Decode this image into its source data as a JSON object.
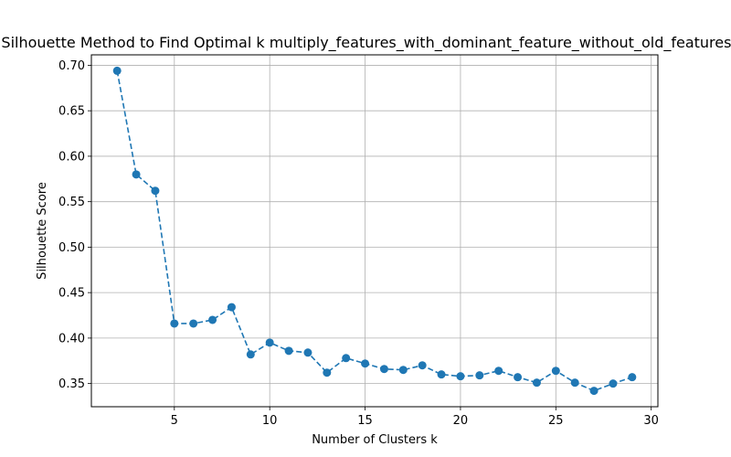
{
  "chart_data": {
    "type": "line",
    "title": "Silhouette Method to Find Optimal k multiply_features_with_dominant_feature_without_old_features_n",
    "xlabel": "Number of Clusters k",
    "ylabel": "Silhouette Score",
    "xlim": [
      0.65,
      30.35
    ],
    "ylim": [
      0.3245,
      0.7115
    ],
    "xticks": [
      5,
      10,
      15,
      20,
      25,
      30
    ],
    "yticks": [
      0.35,
      0.4,
      0.45,
      0.5,
      0.55,
      0.6,
      0.65,
      0.7
    ],
    "xtick_labels": [
      "5",
      "10",
      "15",
      "20",
      "25",
      "30"
    ],
    "ytick_labels": [
      "0.35",
      "0.40",
      "0.45",
      "0.50",
      "0.55",
      "0.60",
      "0.65",
      "0.70"
    ],
    "grid": true,
    "line_color": "#1f77b4",
    "line_style": "dashed",
    "marker": "circle",
    "series": [
      {
        "x": [
          2,
          3,
          4,
          5,
          6,
          7,
          8,
          9,
          10,
          11,
          12,
          13,
          14,
          15,
          16,
          17,
          18,
          19,
          20,
          21,
          22,
          23,
          24,
          25,
          26,
          27,
          28,
          29
        ],
        "values": [
          0.694,
          0.58,
          0.562,
          0.416,
          0.416,
          0.42,
          0.434,
          0.382,
          0.395,
          0.386,
          0.384,
          0.362,
          0.378,
          0.372,
          0.366,
          0.365,
          0.37,
          0.36,
          0.358,
          0.359,
          0.364,
          0.357,
          0.351,
          0.364,
          0.351,
          0.342,
          0.35,
          0.357
        ]
      }
    ]
  }
}
